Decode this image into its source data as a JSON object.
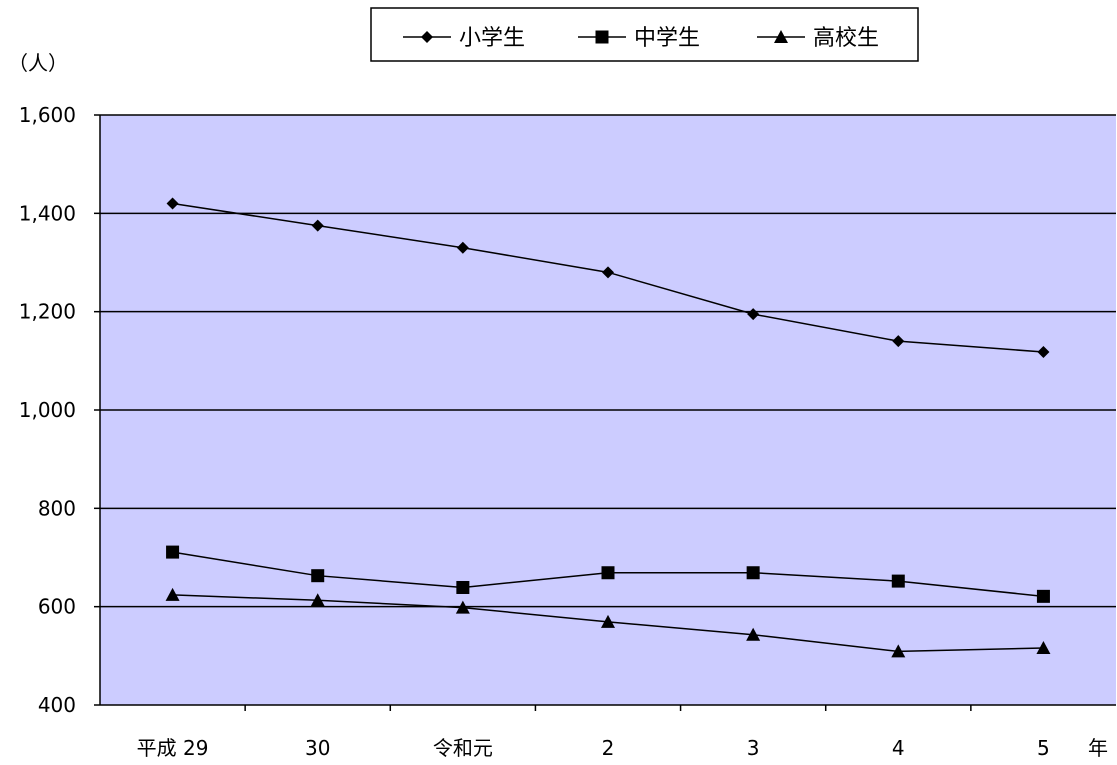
{
  "chart_data": {
    "type": "line",
    "ylabel": "（人）",
    "x_unit": "年",
    "categories": [
      "平成 29",
      "30",
      "令和元",
      "2",
      "3",
      "4",
      "5"
    ],
    "ylim": [
      400,
      1600
    ],
    "yticks": [
      400,
      600,
      800,
      1000,
      1200,
      1400,
      1600
    ],
    "ytick_labels": [
      "400",
      "600",
      "800",
      "1,000",
      "1,200",
      "1,400",
      "1,600"
    ],
    "grid": true,
    "legend_position": "top",
    "plot_background": "#ccccff",
    "series": [
      {
        "name": "小学生",
        "marker": "diamond",
        "values": [
          1420,
          1375,
          1330,
          1280,
          1195,
          1140,
          1118
        ]
      },
      {
        "name": "中学生",
        "marker": "square",
        "values": [
          711,
          663,
          639,
          669,
          669,
          652,
          621
        ]
      },
      {
        "name": "高校生",
        "marker": "triangle",
        "values": [
          624,
          613,
          598,
          569,
          543,
          509,
          516
        ]
      }
    ]
  }
}
